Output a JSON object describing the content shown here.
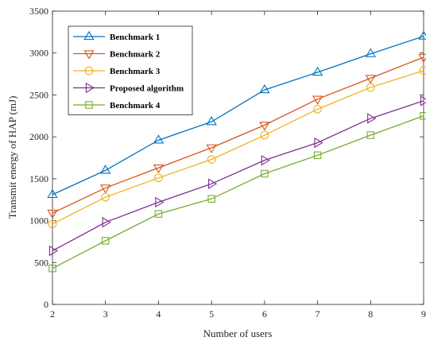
{
  "chart_data": {
    "type": "line",
    "xlabel": "Number of users",
    "ylabel": "Transmit energy of HAP (mJ)",
    "x": [
      2,
      3,
      4,
      5,
      6,
      7,
      8,
      9
    ],
    "xlim": [
      2,
      9
    ],
    "ylim": [
      0,
      3500
    ],
    "xticks": [
      2,
      3,
      4,
      5,
      6,
      7,
      8,
      9
    ],
    "yticks": [
      0,
      500,
      1000,
      1500,
      2000,
      2500,
      3000,
      3500
    ],
    "grid": false,
    "legend_position": "top-left",
    "series": [
      {
        "name": "Benchmark 1",
        "color": "#0072BD",
        "marker": "triangle-up",
        "values": [
          1310,
          1600,
          1960,
          2180,
          2560,
          2770,
          2990,
          3200
        ]
      },
      {
        "name": "Benchmark 2",
        "color": "#D95319",
        "marker": "triangle-down",
        "values": [
          1090,
          1390,
          1630,
          1870,
          2140,
          2450,
          2700,
          2950
        ]
      },
      {
        "name": "Benchmark 3",
        "color": "#EDB120",
        "marker": "circle",
        "values": [
          960,
          1280,
          1510,
          1730,
          2020,
          2330,
          2590,
          2790
        ]
      },
      {
        "name": "Proposed algorithm",
        "color": "#7E2F8E",
        "marker": "triangle-right",
        "values": [
          640,
          980,
          1220,
          1440,
          1720,
          1930,
          2220,
          2430
        ]
      },
      {
        "name": "Benchmark 4",
        "color": "#77AC30",
        "marker": "square",
        "values": [
          430,
          760,
          1080,
          1260,
          1560,
          1780,
          2020,
          2250
        ]
      }
    ]
  }
}
